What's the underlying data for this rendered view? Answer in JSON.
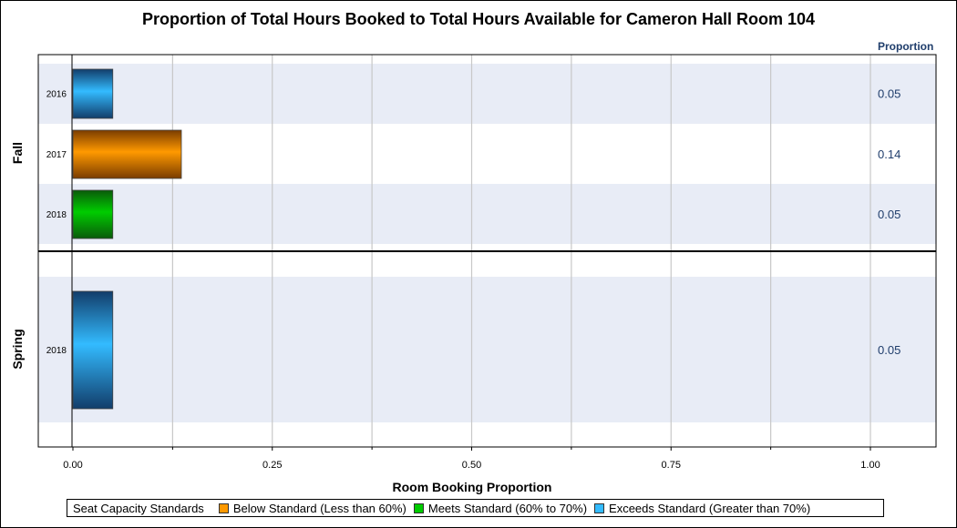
{
  "chart_data": {
    "type": "bar",
    "orientation": "horizontal",
    "title": "Proportion of Total Hours Booked to Total Hours Available for Cameron Hall Room 104",
    "xlabel": "Room Booking Proportion",
    "value_column_header": "Proportion",
    "xlim": [
      0,
      1.1
    ],
    "xticks": [
      "0.00",
      "0.25",
      "0.50",
      "0.75",
      "1.00"
    ],
    "grid": true,
    "legend_position": "bottom",
    "groups": [
      {
        "label": "Fall",
        "bars": [
          {
            "label": "2016",
            "value": 0.05,
            "value_label": "0.05",
            "category": "exceeds"
          },
          {
            "label": "2017",
            "value": 0.136,
            "value_label": "0.14",
            "category": "below"
          },
          {
            "label": "2018",
            "value": 0.05,
            "value_label": "0.05",
            "category": "meets"
          }
        ]
      },
      {
        "label": "Spring",
        "bars": [
          {
            "label": "2018",
            "value": 0.05,
            "value_label": "0.05",
            "category": "exceeds"
          }
        ]
      }
    ],
    "legend": {
      "title": "Seat Capacity Standards",
      "items": [
        {
          "key": "below",
          "label": "Below Standard (Less than 60%)",
          "color": "#ff9900"
        },
        {
          "key": "meets",
          "label": "Meets Standard (60% to 70%)",
          "color": "#00cc00"
        },
        {
          "key": "exceeds",
          "label": "Exceeds Standard (Greater than 70%)",
          "color": "#33bbff"
        }
      ]
    },
    "colors": {
      "band_fill": "#e8ecf6",
      "value_text": "#1f3d6b",
      "header_text": "#1f3d6b",
      "grid": "#c8c8c8"
    }
  }
}
